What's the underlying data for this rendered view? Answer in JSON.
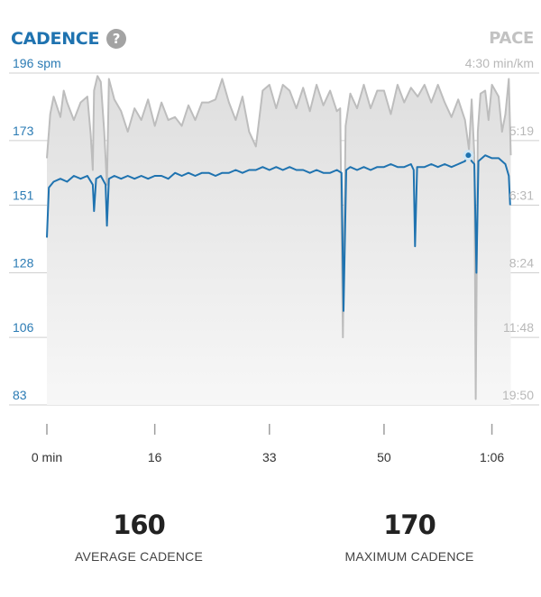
{
  "header": {
    "title": "CADENCE",
    "help_glyph": "?",
    "right_title": "PACE"
  },
  "colors": {
    "cadence": "#1f73b0",
    "pace_line": "#bdbdbd",
    "pace_fill": "#e6e6e6",
    "grid": "#cfcfcf",
    "left_axis_text": "#2b7bb4",
    "right_axis_text": "#b8b8b8"
  },
  "chart_data": {
    "type": "line",
    "grid": true,
    "xlabel": "",
    "x_ticks": [
      "0 min",
      "16",
      "33",
      "50",
      "1:06"
    ],
    "x_tick_minutes": [
      0,
      16,
      33,
      50,
      66
    ],
    "xlim": [
      0,
      69
    ],
    "left_axis": {
      "unit": "spm",
      "ticks": [
        196,
        173,
        151,
        128,
        106,
        83
      ],
      "tick_labels": [
        "196 spm",
        "173",
        "151",
        "128",
        "106",
        "83"
      ],
      "ylim": [
        83,
        196
      ]
    },
    "right_axis": {
      "unit": "min/km",
      "tick_labels": [
        "4:30 min/km",
        "5:19",
        "6:31",
        "8:24",
        "11:48",
        "19:50"
      ]
    },
    "series": [
      {
        "name": "Cadence",
        "axis": "left",
        "points": [
          [
            0,
            140
          ],
          [
            0.3,
            157
          ],
          [
            1,
            159
          ],
          [
            2,
            160
          ],
          [
            3,
            159
          ],
          [
            4,
            161
          ],
          [
            5,
            160
          ],
          [
            6,
            161
          ],
          [
            6.8,
            158
          ],
          [
            7,
            149
          ],
          [
            7.3,
            160
          ],
          [
            8,
            161
          ],
          [
            8.7,
            158
          ],
          [
            8.9,
            144
          ],
          [
            9.2,
            160
          ],
          [
            10,
            161
          ],
          [
            11,
            160
          ],
          [
            12,
            161
          ],
          [
            13,
            160
          ],
          [
            14,
            161
          ],
          [
            15,
            160
          ],
          [
            16,
            161
          ],
          [
            17,
            161
          ],
          [
            18,
            160
          ],
          [
            19,
            162
          ],
          [
            20,
            161
          ],
          [
            21,
            162
          ],
          [
            22,
            161
          ],
          [
            23,
            162
          ],
          [
            24,
            162
          ],
          [
            25,
            161
          ],
          [
            26,
            162
          ],
          [
            27,
            162
          ],
          [
            28,
            163
          ],
          [
            29,
            162
          ],
          [
            30,
            163
          ],
          [
            31,
            163
          ],
          [
            32,
            164
          ],
          [
            33,
            163
          ],
          [
            34,
            164
          ],
          [
            35,
            163
          ],
          [
            36,
            164
          ],
          [
            37,
            163
          ],
          [
            38,
            163
          ],
          [
            39,
            162
          ],
          [
            40,
            163
          ],
          [
            41,
            162
          ],
          [
            42,
            162
          ],
          [
            43,
            163
          ],
          [
            43.7,
            162
          ],
          [
            44,
            115
          ],
          [
            44.4,
            163
          ],
          [
            45,
            164
          ],
          [
            46,
            163
          ],
          [
            47,
            164
          ],
          [
            48,
            163
          ],
          [
            49,
            164
          ],
          [
            50,
            164
          ],
          [
            51,
            165
          ],
          [
            52,
            164
          ],
          [
            53,
            164
          ],
          [
            54,
            165
          ],
          [
            54.4,
            163
          ],
          [
            54.6,
            137
          ],
          [
            54.9,
            164
          ],
          [
            55,
            164
          ],
          [
            56,
            164
          ],
          [
            57,
            165
          ],
          [
            58,
            164
          ],
          [
            59,
            165
          ],
          [
            60,
            164
          ],
          [
            61,
            165
          ],
          [
            62,
            166
          ],
          [
            62.5,
            168
          ],
          [
            63,
            166
          ],
          [
            63.4,
            165
          ],
          [
            63.7,
            128
          ],
          [
            64,
            166
          ],
          [
            65,
            168
          ],
          [
            66,
            167
          ],
          [
            67,
            167
          ],
          [
            68,
            165
          ],
          [
            68.5,
            161
          ],
          [
            68.7,
            151
          ]
        ]
      },
      {
        "name": "Pace",
        "axis": "right",
        "points": [
          [
            0,
            167
          ],
          [
            0.5,
            182
          ],
          [
            1,
            188
          ],
          [
            2,
            181
          ],
          [
            2.5,
            190
          ],
          [
            3,
            186
          ],
          [
            4,
            180
          ],
          [
            5,
            186
          ],
          [
            6,
            188
          ],
          [
            6.5,
            175
          ],
          [
            6.8,
            163
          ],
          [
            7,
            190
          ],
          [
            7.5,
            195
          ],
          [
            8,
            193
          ],
          [
            8.5,
            176
          ],
          [
            8.9,
            158
          ],
          [
            9.2,
            194
          ],
          [
            10,
            187
          ],
          [
            11,
            183
          ],
          [
            12,
            176
          ],
          [
            13,
            184
          ],
          [
            14,
            180
          ],
          [
            15,
            187
          ],
          [
            16,
            178
          ],
          [
            17,
            186
          ],
          [
            18,
            180
          ],
          [
            19,
            181
          ],
          [
            20,
            178
          ],
          [
            21,
            185
          ],
          [
            22,
            180
          ],
          [
            23,
            186
          ],
          [
            24,
            186
          ],
          [
            25,
            187
          ],
          [
            26,
            194
          ],
          [
            27,
            186
          ],
          [
            28,
            180
          ],
          [
            29,
            188
          ],
          [
            30,
            176
          ],
          [
            31,
            171
          ],
          [
            32,
            190
          ],
          [
            33,
            192
          ],
          [
            34,
            184
          ],
          [
            35,
            192
          ],
          [
            36,
            190
          ],
          [
            37,
            184
          ],
          [
            38,
            191
          ],
          [
            39,
            183
          ],
          [
            40,
            192
          ],
          [
            41,
            185
          ],
          [
            42,
            190
          ],
          [
            43,
            183
          ],
          [
            43.5,
            184
          ],
          [
            43.9,
            106
          ],
          [
            44.3,
            178
          ],
          [
            45,
            189
          ],
          [
            46,
            184
          ],
          [
            47,
            192
          ],
          [
            48,
            184
          ],
          [
            49,
            190
          ],
          [
            50,
            190
          ],
          [
            51,
            182
          ],
          [
            52,
            192
          ],
          [
            53,
            186
          ],
          [
            54,
            191
          ],
          [
            55,
            188
          ],
          [
            56,
            192
          ],
          [
            57,
            186
          ],
          [
            58,
            192
          ],
          [
            59,
            186
          ],
          [
            60,
            181
          ],
          [
            61,
            187
          ],
          [
            62,
            180
          ],
          [
            62.6,
            170
          ],
          [
            63,
            187
          ],
          [
            63.4,
            168
          ],
          [
            63.6,
            85
          ],
          [
            63.9,
            176
          ],
          [
            64.3,
            189
          ],
          [
            65,
            190
          ],
          [
            65.5,
            180
          ],
          [
            66,
            192
          ],
          [
            67,
            188
          ],
          [
            67.5,
            176
          ],
          [
            68,
            182
          ],
          [
            68.5,
            194
          ],
          [
            68.8,
            168
          ]
        ]
      }
    ],
    "highlight_point": {
      "x": 62.5,
      "y": 168
    }
  },
  "stats": [
    {
      "value": "160",
      "label": "AVERAGE CADENCE"
    },
    {
      "value": "170",
      "label": "MAXIMUM CADENCE"
    }
  ]
}
